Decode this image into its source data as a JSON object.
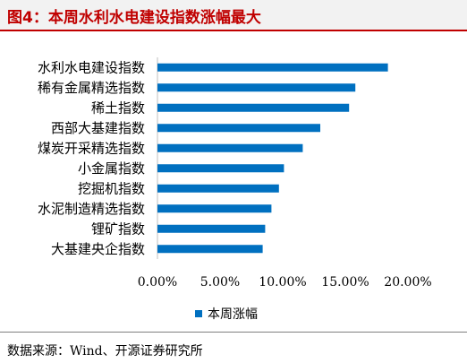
{
  "title": "图4：本周水利水电建设指数涨幅最大",
  "source": "数据来源：Wind、开源证券研究所",
  "colors": {
    "bar": "#0070c0",
    "title": "#c00000"
  },
  "chart_data": {
    "type": "bar",
    "orientation": "horizontal",
    "categories": [
      "水利水电建设指数",
      "稀有金属精选指数",
      "稀土指数",
      "西部大基建指数",
      "煤炭开采精选指数",
      "小金属指数",
      "挖掘机指数",
      "水泥制造精选指数",
      "锂矿指数",
      "大基建央企指数"
    ],
    "series": [
      {
        "name": "本周涨幅",
        "values": [
          18.4,
          15.8,
          15.3,
          13.0,
          11.6,
          10.1,
          9.7,
          9.1,
          8.6,
          8.4
        ]
      }
    ],
    "xlim": [
      0,
      20
    ],
    "xticks": [
      "0.00%",
      "5.00%",
      "10.00%",
      "15.00%",
      "20.00%"
    ],
    "grid": false,
    "legend": "bottom"
  }
}
